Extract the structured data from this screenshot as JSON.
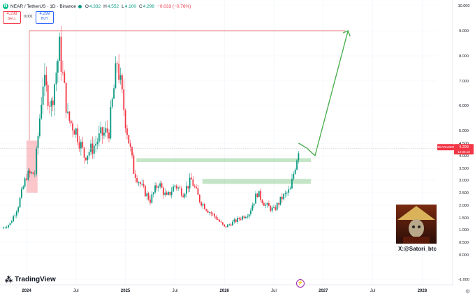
{
  "header": {
    "symbol": "NEAR / TetherUS · 1D · Binance",
    "o_label": "O",
    "o_value": "4.332",
    "h_label": "H",
    "h_value": "4.552",
    "l_label": "L",
    "l_value": "4.100",
    "c_label": "C",
    "c_value": "4.299",
    "change": "−0.033 (−0.76%)"
  },
  "trade": {
    "sell_price": "4.298",
    "sell_label": "SELL",
    "spread": "0.001",
    "buy_price": "4.299",
    "buy_label": "BUY"
  },
  "price_tag": {
    "symbol": "NEARUSDT",
    "price": "4.299",
    "countdown": "12:05:18"
  },
  "branding": {
    "logo_text": "TradingView",
    "credit": "X:@Satori_btc"
  },
  "icons": {
    "logo": "near-logo-icon",
    "status": "market-open-dot-icon",
    "event": "lightning-icon",
    "settings": "gear-icon"
  },
  "colors": {
    "up": "#089981",
    "down": "#f23645",
    "support_zone": "#a5d6a7",
    "target_line": "#e57373",
    "projection": "#4caf50"
  },
  "chart_data": {
    "type": "candlestick",
    "y_ticks": [
      "10.000",
      "9.000",
      "8.000",
      "7.000",
      "6.000",
      "5.000",
      "4.500",
      "4.000",
      "3.500",
      "3.000",
      "2.500",
      "2.000",
      "1.500",
      "1.000",
      "0.500",
      "0.000",
      "-1.000"
    ],
    "x_ticks": [
      "2024",
      "Jul",
      "2025",
      "Jul",
      "2026",
      "Jul",
      "2027",
      "Jul",
      "2028"
    ],
    "close_path": [
      [
        "2023-10",
        1.05
      ],
      [
        "2023-11",
        1.25
      ],
      [
        "2023-12",
        2.0
      ],
      [
        "2024-01",
        3.2
      ],
      [
        "2024-02",
        3.3
      ],
      [
        "2024-03",
        7.0
      ],
      [
        "2024-04",
        6.0
      ],
      [
        "2024-05",
        8.3
      ],
      [
        "2024-06",
        5.5
      ],
      [
        "2024-07",
        5.0
      ],
      [
        "2024-08",
        4.0
      ],
      [
        "2024-09",
        4.3
      ],
      [
        "2024-10",
        4.8
      ],
      [
        "2024-11",
        5.0
      ],
      [
        "2024-12",
        7.8
      ],
      [
        "2025-01",
        5.4
      ],
      [
        "2025-02",
        3.4
      ],
      [
        "2025-03",
        2.7
      ],
      [
        "2025-04",
        2.2
      ],
      [
        "2025-05",
        2.9
      ],
      [
        "2025-06",
        2.3
      ],
      [
        "2025-07",
        2.8
      ],
      [
        "2025-08",
        2.5
      ],
      [
        "2025-09",
        3.0
      ],
      [
        "2025-10",
        2.2
      ],
      [
        "2025-11",
        1.8
      ],
      [
        "2025-12",
        1.5
      ],
      [
        "2026-01",
        1.1
      ],
      [
        "2026-02",
        1.3
      ],
      [
        "2026-03",
        1.5
      ],
      [
        "2026-04",
        1.7
      ],
      [
        "2026-05",
        2.5
      ],
      [
        "2026-06",
        2.0
      ],
      [
        "2026-07",
        1.8
      ],
      [
        "2026-08",
        2.3
      ],
      [
        "2026-09",
        2.6
      ],
      [
        "2026-10",
        4.3
      ]
    ],
    "target_level": 9.0,
    "highlight_zone": {
      "from": "2024-01",
      "to": "2024-02",
      "low": 2.5,
      "high": 4.6
    },
    "support_zones": [
      {
        "from": "2025-02",
        "to": "2026-11",
        "low": 3.75,
        "high": 3.9
      },
      {
        "from": "2025-10",
        "to": "2026-11",
        "low": 2.85,
        "high": 3.05
      }
    ],
    "projection": [
      [
        "2026-10",
        4.5
      ],
      [
        "2026-11",
        4.3
      ],
      [
        "2026-12",
        4.0
      ],
      [
        "2027-04",
        9.0
      ]
    ],
    "last_price": 4.299
  }
}
